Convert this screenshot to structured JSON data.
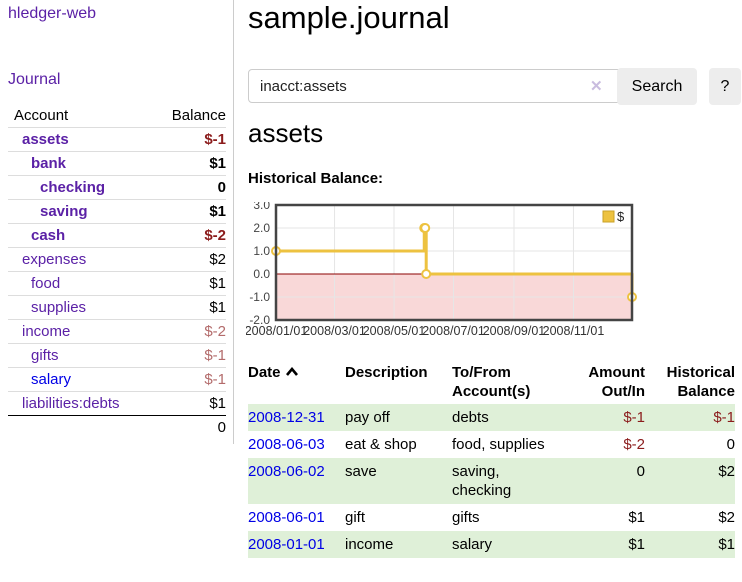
{
  "app": {
    "title": "hledger-web"
  },
  "sidebar": {
    "nav": {
      "journal": "Journal"
    },
    "table": {
      "headers": {
        "account": "Account",
        "balance": "Balance"
      },
      "rows": [
        {
          "label": "assets",
          "indent": 1,
          "bold": true,
          "value": "$-1",
          "value_style": "negative-bold"
        },
        {
          "label": "bank",
          "indent": 2,
          "bold": true,
          "value": "$1",
          "value_style": "bold"
        },
        {
          "label": "checking",
          "indent": 3,
          "bold": true,
          "value": "0",
          "value_style": "bold"
        },
        {
          "label": "saving",
          "indent": 3,
          "bold": true,
          "value": "$1",
          "value_style": "bold"
        },
        {
          "label": "cash",
          "indent": 2,
          "bold": true,
          "value": "$-2",
          "value_style": "negative-bold"
        },
        {
          "label": "expenses",
          "indent": 1,
          "bold": false,
          "value": "$2",
          "value_style": "plain"
        },
        {
          "label": "food",
          "indent": 2,
          "bold": false,
          "value": "$1",
          "value_style": "plain"
        },
        {
          "label": "supplies",
          "indent": 2,
          "bold": false,
          "value": "$1",
          "value_style": "plain"
        },
        {
          "label": "income",
          "indent": 1,
          "bold": false,
          "value": "$-2",
          "value_style": "negative-muted"
        },
        {
          "label": "gifts",
          "indent": 2,
          "bold": false,
          "value": "$-1",
          "value_style": "negative-muted"
        },
        {
          "label": "salary",
          "indent": 2,
          "bold": false,
          "value": "$-1",
          "value_style": "negative-muted"
        },
        {
          "label": "liabilities:debts",
          "indent": 1,
          "bold": false,
          "value": "$1",
          "value_style": "plain"
        }
      ],
      "total": "0"
    }
  },
  "main": {
    "title": "sample.journal",
    "search": {
      "value": "inacct:assets",
      "clear_icon": "✕",
      "search_button": "Search",
      "help_button": "?"
    },
    "account_heading": "assets",
    "chart_heading": "Historical Balance:"
  },
  "chart_data": {
    "type": "line",
    "step": true,
    "title": "Historical Balance:",
    "series": [
      {
        "name": "$",
        "color": "#edc240",
        "points": [
          {
            "x": "2008-01-01",
            "y": 1
          },
          {
            "x": "2008-06-01",
            "y": 2
          },
          {
            "x": "2008-06-02",
            "y": 2
          },
          {
            "x": "2008-06-03",
            "y": 0
          },
          {
            "x": "2008-12-31",
            "y": -1
          }
        ]
      }
    ],
    "xrange": [
      "2008-01-01",
      "2008-12-31"
    ],
    "ylim": [
      -2,
      3
    ],
    "yticks": [
      "3.0",
      "2.0",
      "1.0",
      "0.0",
      "-1.0",
      "-2.0"
    ],
    "xticks": [
      "2008/01/01",
      "2008/03/01",
      "2008/05/01",
      "2008/07/01",
      "2008/09/01",
      "2008/11/01"
    ],
    "legend": {
      "position": "top-right",
      "label": "$"
    },
    "grid": true,
    "negative_region_fill": "#f9d8d8",
    "zero_line_color": "#8b0000"
  },
  "register": {
    "headers": {
      "date": "Date",
      "description": "Description",
      "accounts": "To/From Account(s)",
      "amount": "Amount Out/In",
      "balance": "Historical Balance"
    },
    "sort": {
      "column": "date",
      "direction": "asc",
      "icon": "chevron-up"
    },
    "rows": [
      {
        "date": "2008-12-31",
        "description": "pay off",
        "accounts": "debts",
        "amount": "$-1",
        "amount_negative": true,
        "balance": "$-1",
        "balance_negative": true
      },
      {
        "date": "2008-06-03",
        "description": "eat & shop",
        "accounts": "food, supplies",
        "amount": "$-2",
        "amount_negative": true,
        "balance": "0",
        "balance_negative": false
      },
      {
        "date": "2008-06-02",
        "description": "save",
        "accounts": "saving, checking",
        "amount": "0",
        "amount_negative": false,
        "balance": "$2",
        "balance_negative": false
      },
      {
        "date": "2008-06-01",
        "description": "gift",
        "accounts": "gifts",
        "amount": "$1",
        "amount_negative": false,
        "balance": "$2",
        "balance_negative": false
      },
      {
        "date": "2008-01-01",
        "description": "income",
        "accounts": "salary",
        "amount": "$1",
        "amount_negative": false,
        "balance": "$1",
        "balance_negative": false
      }
    ]
  },
  "colors": {
    "link_purple": "#5b21a6",
    "link_blue": "#0000e6",
    "negative_strong": "#8b1c1c",
    "negative_muted": "#b36b6b",
    "row_green": "#dff0d8",
    "chart_gold": "#edc240",
    "chart_negative_fill": "#f9d8d8",
    "zero_line": "#8b0000",
    "button_gray": "#ededed"
  }
}
